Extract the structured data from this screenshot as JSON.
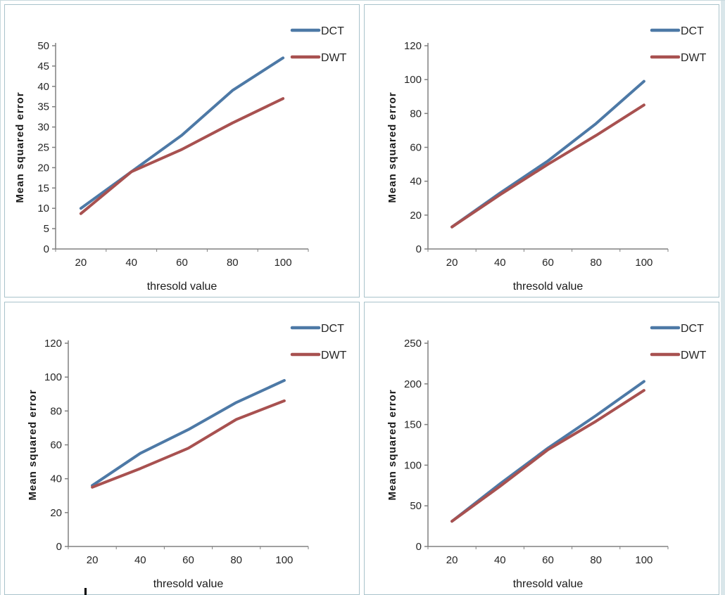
{
  "colors": {
    "dct_blue": "#4d79a6",
    "dwt_red": "#a85150",
    "axis_gray": "#808080",
    "panel_border": "#a9c3cb",
    "edge_strip": "#d9e6ea"
  },
  "chart_data": [
    {
      "id": "top-left",
      "type": "line",
      "title": "",
      "categories": [
        20,
        40,
        60,
        80,
        100
      ],
      "xlabel": "thresold value",
      "ylabel": "Mean squared error",
      "ylim": [
        0,
        50
      ],
      "ytick_step": 5,
      "grid": false,
      "legend_position": "top-right",
      "series": [
        {
          "name": "DCT",
          "color": "#4d79a6",
          "values": [
            10,
            19,
            28,
            39,
            47
          ]
        },
        {
          "name": "DWT",
          "color": "#a85150",
          "values": [
            8.7,
            19,
            24.5,
            31,
            37
          ]
        }
      ]
    },
    {
      "id": "top-right",
      "type": "line",
      "title": "",
      "categories": [
        20,
        40,
        60,
        80,
        100
      ],
      "xlabel": "thresold value",
      "ylabel": "Mean squared error",
      "ylim": [
        0,
        120
      ],
      "ytick_step": 20,
      "grid": false,
      "legend_position": "top-right",
      "series": [
        {
          "name": "DCT",
          "color": "#4d79a6",
          "values": [
            13,
            33,
            52,
            74,
            99
          ]
        },
        {
          "name": "DWT",
          "color": "#a85150",
          "values": [
            13,
            32,
            50,
            67,
            85
          ]
        }
      ]
    },
    {
      "id": "bottom-left",
      "type": "line",
      "title": "",
      "categories": [
        20,
        40,
        60,
        80,
        100
      ],
      "xlabel": "thresold value",
      "ylabel": "Mean squared error",
      "ylim": [
        0,
        120
      ],
      "ytick_step": 20,
      "grid": false,
      "legend_position": "top-right",
      "series": [
        {
          "name": "DCT",
          "color": "#4d79a6",
          "values": [
            36,
            55,
            69,
            85,
            98
          ]
        },
        {
          "name": "DWT",
          "color": "#a85150",
          "values": [
            35,
            46,
            58,
            75,
            86
          ]
        }
      ]
    },
    {
      "id": "bottom-right",
      "type": "line",
      "title": "",
      "categories": [
        20,
        40,
        60,
        80,
        100
      ],
      "xlabel": "thresold value",
      "ylabel": "Mean squared error",
      "ylim": [
        0,
        250
      ],
      "ytick_step": 50,
      "grid": false,
      "legend_position": "top-right",
      "series": [
        {
          "name": "DCT",
          "color": "#4d79a6",
          "values": [
            31,
            77,
            121,
            161,
            203
          ]
        },
        {
          "name": "DWT",
          "color": "#a85150",
          "values": [
            31,
            74,
            119,
            154,
            192
          ]
        }
      ]
    }
  ]
}
